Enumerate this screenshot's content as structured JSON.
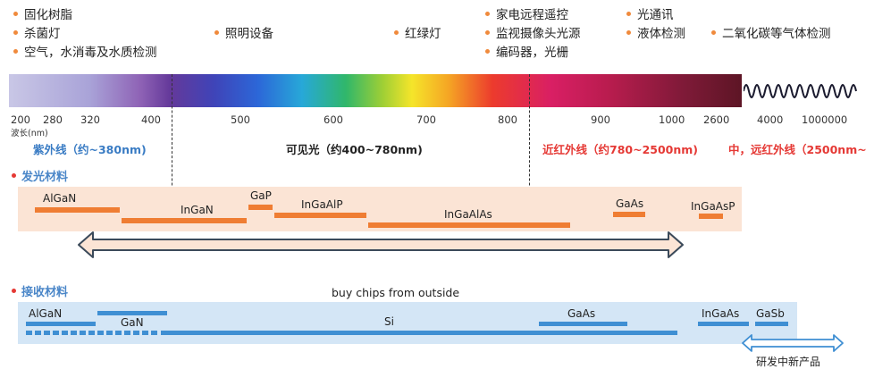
{
  "applications": [
    {
      "label": "固化树脂"
    },
    {
      "label": "杀菌灯"
    },
    {
      "label": "空气，水消毒及水质检测"
    },
    {
      "label": "照明设备"
    },
    {
      "label": "红绿灯"
    },
    {
      "label": "家电远程遥控"
    },
    {
      "label": "监视摄像头光源"
    },
    {
      "label": "编码器，光栅"
    },
    {
      "label": "光通讯"
    },
    {
      "label": "液体检测"
    },
    {
      "label": "二氧化碳等气体检测"
    }
  ],
  "spectrum": {
    "wavelength_unit": "波长(nm)",
    "ticks": [
      "200",
      "280",
      "320",
      "400",
      "500",
      "600",
      "700",
      "800",
      "900",
      "1000",
      "2600",
      "4000",
      "1000000"
    ]
  },
  "regions": {
    "uv": "紫外线（约~380nm)",
    "visible": "可见光（约400~780nm)",
    "nir": "近红外线（约780~2500nm)",
    "far_ir": "中，远红外线（2500nm~"
  },
  "colors": {
    "uv_text": "#3a7cc4",
    "ir_text": "#e53935",
    "emit_bar": "#ef7d33",
    "emit_panel": "#fbe4d5",
    "recv_bar": "#3f8fd3",
    "recv_panel": "#d4e6f6"
  },
  "emitting": {
    "title": "发光材料",
    "materials": [
      "AlGaN",
      "InGaN",
      "GaP",
      "InGaAlP",
      "InGaAlAs",
      "GaAs",
      "InGaAsP"
    ]
  },
  "receiving": {
    "title": "接收材料",
    "note": "buy chips from outside",
    "materials": [
      "AlGaN",
      "GaN",
      "Si",
      "GaAs",
      "InGaAs",
      "GaSb"
    ],
    "new_product": "研发中新产品"
  }
}
